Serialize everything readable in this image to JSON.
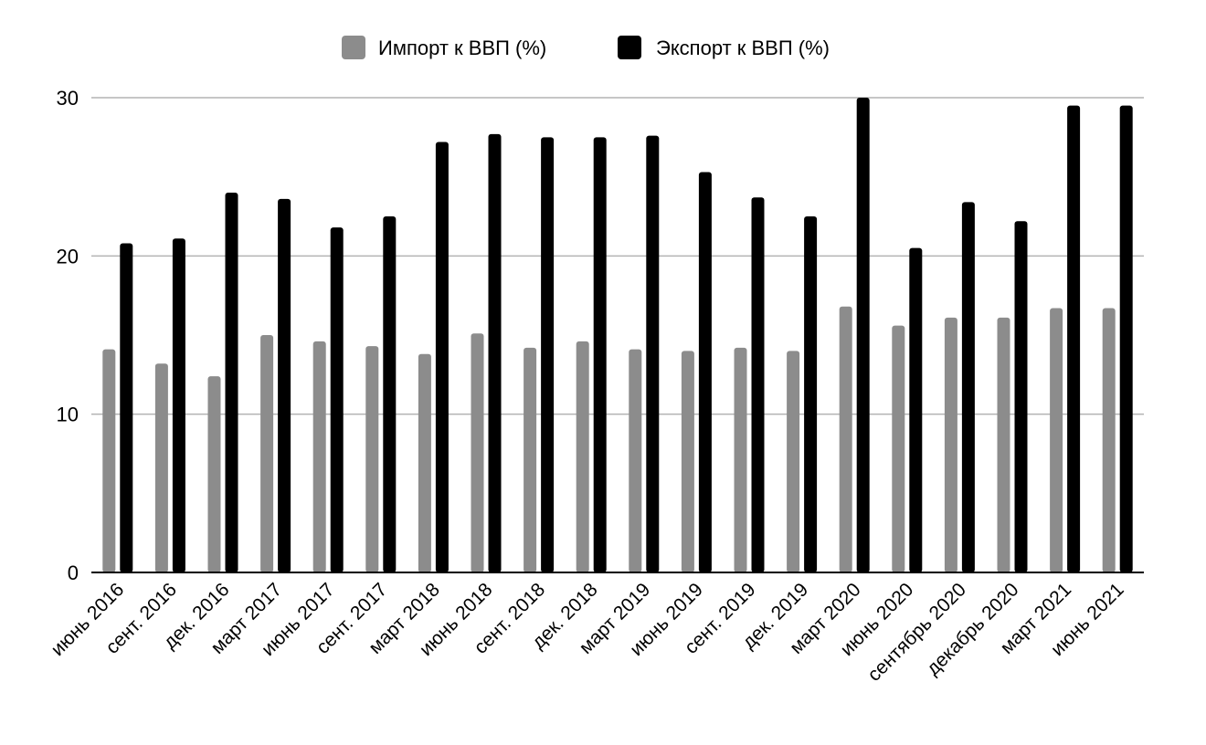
{
  "chart_data": {
    "type": "bar",
    "title": "",
    "xlabel": "",
    "ylabel": "",
    "ylim": [
      0,
      30
    ],
    "yticks": [
      0,
      10,
      20,
      30
    ],
    "grid": true,
    "legend_position": "top",
    "categories": [
      "июнь 2016",
      "сент. 2016",
      "дек. 2016",
      "март 2017",
      "июнь 2017",
      "сент. 2017",
      "март 2018",
      "июнь 2018",
      "сент. 2018",
      "дек. 2018",
      "март 2019",
      "июнь 2019",
      "сент. 2019",
      "дек. 2019",
      "март 2020",
      "июнь 2020",
      "сентябрь 2020",
      "декабрь 2020",
      "март 2021",
      "июнь 2021"
    ],
    "series": [
      {
        "name": "Импорт к ВВП (%)",
        "color": "#8c8c8c",
        "values": [
          14.1,
          13.2,
          12.4,
          15.0,
          14.6,
          14.3,
          13.8,
          15.1,
          14.2,
          14.6,
          14.1,
          14.0,
          14.2,
          14.0,
          16.8,
          15.6,
          16.1,
          16.1,
          16.7,
          16.7
        ]
      },
      {
        "name": "Экспорт к ВВП (%)",
        "color": "#000000",
        "values": [
          20.8,
          21.1,
          24.0,
          23.6,
          21.8,
          22.5,
          27.2,
          27.7,
          27.5,
          27.5,
          27.6,
          25.3,
          23.7,
          22.5,
          30.0,
          20.5,
          23.4,
          22.2,
          29.5,
          29.5
        ]
      }
    ]
  }
}
